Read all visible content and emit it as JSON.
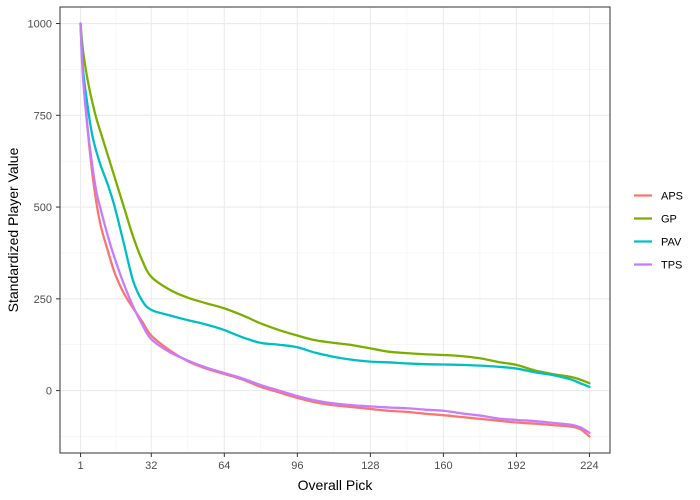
{
  "chart_data": {
    "type": "line",
    "xlabel": "Overall Pick",
    "ylabel": "Standardized Player Value",
    "xlim": [
      -8,
      233
    ],
    "ylim": [
      -170,
      1045
    ],
    "x_ticks": [
      1,
      32,
      64,
      96,
      128,
      160,
      192,
      224
    ],
    "y_ticks": [
      0,
      250,
      500,
      750,
      1000
    ],
    "grid": true,
    "legend_position": "right",
    "x": [
      1,
      2,
      4,
      6,
      8,
      10,
      13,
      16,
      20,
      24,
      28,
      32,
      40,
      48,
      56,
      64,
      72,
      80,
      88,
      96,
      104,
      112,
      120,
      128,
      136,
      144,
      152,
      160,
      168,
      176,
      184,
      192,
      200,
      208,
      216,
      220,
      224
    ],
    "series": [
      {
        "name": "APS",
        "color": "#F8766D",
        "values": [
          1000,
          880,
          720,
          600,
          510,
          445,
          380,
          320,
          265,
          225,
          188,
          150,
          110,
          80,
          60,
          45,
          30,
          10,
          -5,
          -20,
          -32,
          -40,
          -45,
          -50,
          -55,
          -58,
          -63,
          -67,
          -72,
          -77,
          -82,
          -87,
          -90,
          -94,
          -98,
          -105,
          -125
        ]
      },
      {
        "name": "GP",
        "color": "#7CAE00",
        "values": [
          1000,
          930,
          850,
          790,
          740,
          700,
          640,
          580,
          500,
          420,
          355,
          310,
          275,
          253,
          238,
          224,
          205,
          183,
          165,
          150,
          137,
          130,
          124,
          115,
          106,
          102,
          99,
          97,
          94,
          88,
          78,
          70,
          55,
          45,
          37,
          30,
          20
        ]
      },
      {
        "name": "PAV",
        "color": "#00BFC4",
        "values": [
          1000,
          880,
          780,
          700,
          650,
          610,
          560,
          500,
          400,
          300,
          245,
          220,
          205,
          192,
          180,
          165,
          145,
          130,
          125,
          118,
          103,
          92,
          84,
          79,
          77,
          74,
          72,
          71,
          70,
          68,
          65,
          60,
          50,
          42,
          30,
          20,
          10
        ]
      },
      {
        "name": "TPS",
        "color": "#C77CFF",
        "values": [
          1000,
          860,
          720,
          620,
          540,
          490,
          420,
          360,
          290,
          230,
          180,
          140,
          105,
          82,
          63,
          48,
          33,
          15,
          0,
          -15,
          -27,
          -35,
          -40,
          -43,
          -46,
          -48,
          -52,
          -55,
          -62,
          -68,
          -76,
          -80,
          -83,
          -88,
          -93,
          -100,
          -115
        ]
      }
    ]
  }
}
